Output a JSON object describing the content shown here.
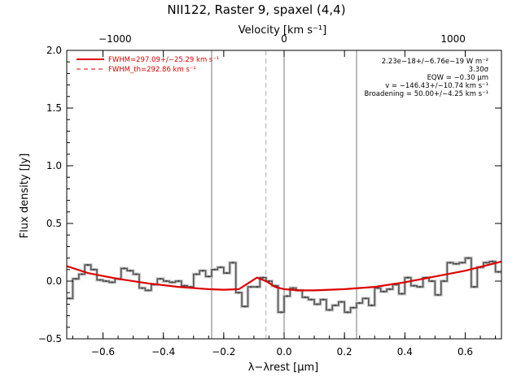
{
  "chart_data": {
    "type": "line",
    "title": "NII122, Raster 9, spaxel (4,4)",
    "xlabel": "λ−λrest [μm]",
    "ylabel": "Flux density [Jy]",
    "top_axis_label": "Velocity [km s⁻¹]",
    "xlim": [
      -0.72,
      0.72
    ],
    "ylim": [
      -0.5,
      2.0
    ],
    "x_ticks": [
      -0.6,
      -0.4,
      -0.2,
      0.0,
      0.2,
      0.4,
      0.6
    ],
    "x_tick_labels": [
      "−0.6",
      "−0.4",
      "−0.2",
      "0.0",
      "0.2",
      "0.4",
      "0.6"
    ],
    "y_ticks": [
      -0.5,
      0.0,
      0.5,
      1.0,
      1.5,
      2.0
    ],
    "y_tick_labels": [
      "−0.5",
      "0.0",
      "0.5",
      "1.0",
      "1.5",
      "2.0"
    ],
    "top_ticks_x": [
      -0.56,
      0.0,
      0.56
    ],
    "top_tick_labels": [
      "−1000",
      "0",
      "1000"
    ],
    "vertical_lines": [
      {
        "x": -0.24,
        "style": "solid"
      },
      {
        "x": -0.06,
        "style": "dashed"
      },
      {
        "x": 0.0,
        "style": "solid"
      },
      {
        "x": 0.24,
        "style": "solid"
      }
    ],
    "series": [
      {
        "style": "step",
        "color": "#555555",
        "x": [
          -0.72,
          -0.7,
          -0.68,
          -0.66,
          -0.64,
          -0.62,
          -0.6,
          -0.58,
          -0.56,
          -0.54,
          -0.52,
          -0.5,
          -0.48,
          -0.46,
          -0.44,
          -0.42,
          -0.4,
          -0.38,
          -0.36,
          -0.34,
          -0.32,
          -0.3,
          -0.28,
          -0.26,
          -0.24,
          -0.22,
          -0.2,
          -0.18,
          -0.16,
          -0.14,
          -0.12,
          -0.1,
          -0.08,
          -0.06,
          -0.04,
          -0.02,
          0.0,
          0.02,
          0.04,
          0.06,
          0.08,
          0.1,
          0.12,
          0.14,
          0.16,
          0.18,
          0.2,
          0.22,
          0.24,
          0.26,
          0.28,
          0.3,
          0.32,
          0.34,
          0.36,
          0.38,
          0.4,
          0.42,
          0.44,
          0.46,
          0.48,
          0.5,
          0.52,
          0.54,
          0.56,
          0.58,
          0.6,
          0.62,
          0.64,
          0.66,
          0.68,
          0.7
        ],
        "y": [
          -0.15,
          0.02,
          0.06,
          0.14,
          0.1,
          0.01,
          0.0,
          -0.01,
          0.02,
          0.11,
          0.09,
          0.06,
          -0.06,
          -0.08,
          -0.03,
          0.02,
          0.0,
          -0.01,
          0.0,
          -0.04,
          -0.05,
          0.06,
          0.09,
          0.04,
          0.1,
          0.12,
          0.07,
          0.16,
          -0.1,
          -0.22,
          -0.05,
          -0.05,
          0.03,
          0.0,
          -0.04,
          -0.27,
          -0.13,
          -0.06,
          -0.08,
          -0.14,
          -0.16,
          -0.2,
          -0.16,
          -0.25,
          -0.21,
          -0.18,
          -0.27,
          -0.23,
          -0.19,
          -0.15,
          -0.21,
          -0.06,
          -0.09,
          -0.07,
          -0.03,
          -0.11,
          0.03,
          -0.04,
          -0.05,
          0.03,
          0.0,
          -0.12,
          0.0,
          0.16,
          0.15,
          0.16,
          0.2,
          -0.05,
          0.12,
          0.16,
          0.17,
          0.08
        ]
      },
      {
        "name": "FWHM=297.09+/−25.29 km s⁻¹",
        "style": "solid",
        "color": "#dd0000",
        "x": [
          -0.72,
          -0.65,
          -0.55,
          -0.45,
          -0.35,
          -0.25,
          -0.2,
          -0.15,
          -0.12,
          -0.09,
          -0.06,
          -0.03,
          0.0,
          0.05,
          0.1,
          0.2,
          0.3,
          0.4,
          0.5,
          0.6,
          0.72
        ],
        "y": [
          0.13,
          0.07,
          0.02,
          -0.02,
          -0.05,
          -0.07,
          -0.075,
          -0.07,
          -0.02,
          0.03,
          0.0,
          -0.05,
          -0.07,
          -0.08,
          -0.08,
          -0.07,
          -0.05,
          -0.01,
          0.04,
          0.09,
          0.17
        ]
      }
    ],
    "legend": [
      {
        "label": "FWHM=297.09+/−25.29 km s⁻¹",
        "style": "solid",
        "color": "#dd0000"
      },
      {
        "label": "FWHM_th=292.86 km s⁻¹",
        "style": "dashed",
        "color": "#dd0000"
      }
    ],
    "legend_position": "top-left",
    "annotations": [
      "2.23e−18+/−6.76e−19 W m⁻²",
      "3.30σ",
      "EQW = −0.30 μm",
      "v = −146.43+/−10.74 km s⁻¹",
      "Broadening = 50.00+/−4.25 km s⁻¹"
    ],
    "annotations_position": "top-right",
    "grid": false
  }
}
